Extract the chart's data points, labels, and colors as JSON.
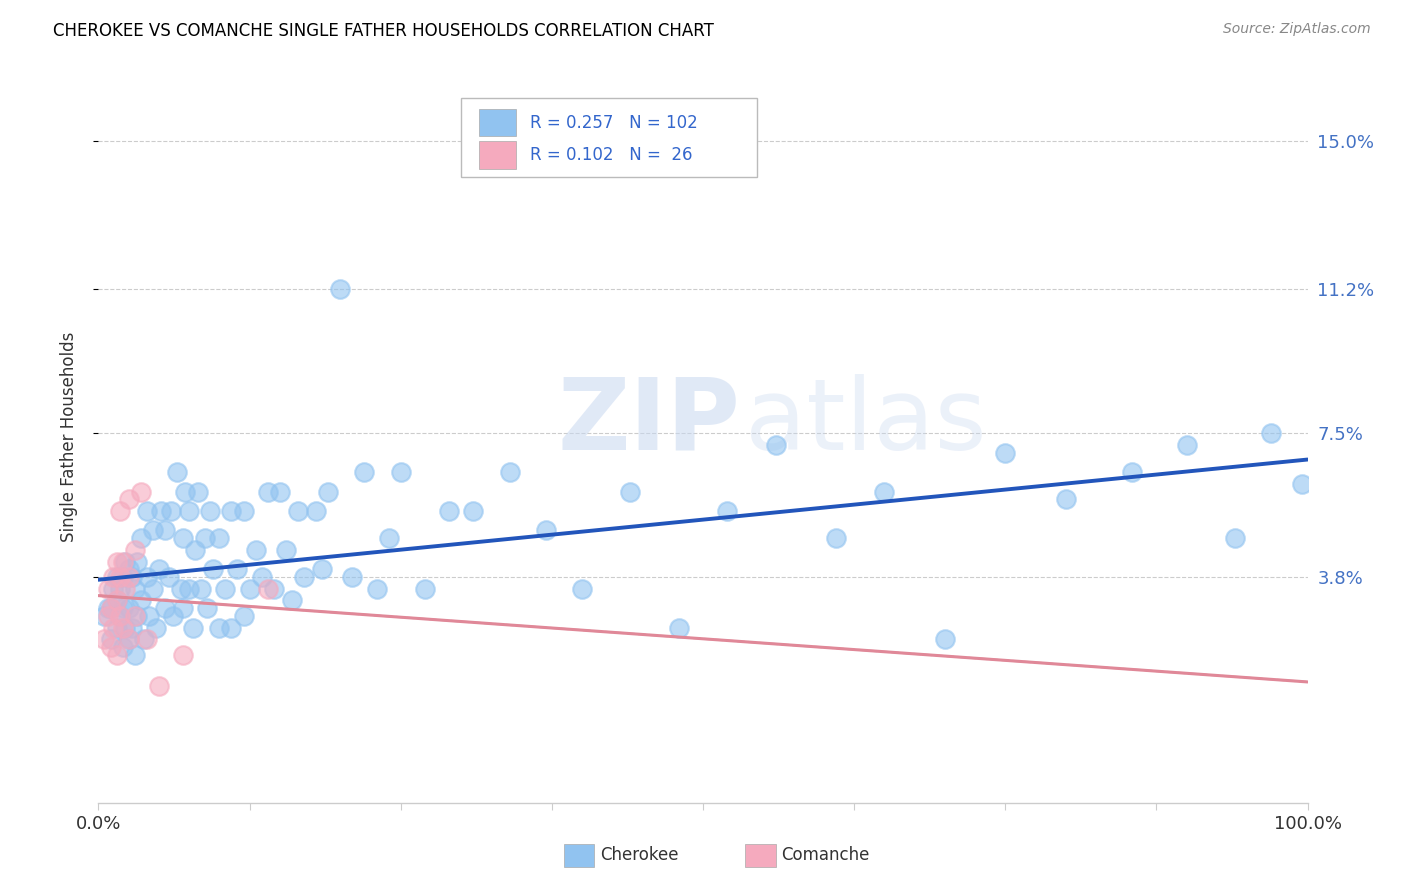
{
  "title": "CHEROKEE VS COMANCHE SINGLE FATHER HOUSEHOLDS CORRELATION CHART",
  "source": "Source: ZipAtlas.com",
  "ylabel": "Single Father Households",
  "ytick_labels": [
    "3.8%",
    "7.5%",
    "11.2%",
    "15.0%"
  ],
  "ytick_values": [
    0.038,
    0.075,
    0.112,
    0.15
  ],
  "xlim": [
    0.0,
    1.0
  ],
  "ylim": [
    -0.02,
    0.168
  ],
  "cherokee_color": "#91C3F0",
  "comanche_color": "#F5AABE",
  "cherokee_line_color": "#2255BB",
  "comanche_line_color": "#E08898",
  "cherokee_R": 0.257,
  "cherokee_N": 102,
  "comanche_R": 0.102,
  "comanche_N": 26,
  "legend_label_cherokee": "Cherokee",
  "legend_label_comanche": "Comanche",
  "watermark_zip": "ZIP",
  "watermark_atlas": "atlas",
  "cherokee_x": [
    0.005,
    0.008,
    0.01,
    0.01,
    0.012,
    0.015,
    0.015,
    0.015,
    0.018,
    0.018,
    0.02,
    0.02,
    0.02,
    0.022,
    0.022,
    0.025,
    0.025,
    0.025,
    0.028,
    0.028,
    0.03,
    0.03,
    0.032,
    0.032,
    0.035,
    0.035,
    0.038,
    0.04,
    0.04,
    0.042,
    0.045,
    0.045,
    0.048,
    0.05,
    0.052,
    0.055,
    0.055,
    0.058,
    0.06,
    0.062,
    0.065,
    0.068,
    0.07,
    0.07,
    0.072,
    0.075,
    0.075,
    0.078,
    0.08,
    0.082,
    0.085,
    0.088,
    0.09,
    0.092,
    0.095,
    0.1,
    0.1,
    0.105,
    0.11,
    0.11,
    0.115,
    0.12,
    0.12,
    0.125,
    0.13,
    0.135,
    0.14,
    0.145,
    0.15,
    0.155,
    0.16,
    0.165,
    0.17,
    0.18,
    0.185,
    0.19,
    0.2,
    0.21,
    0.22,
    0.23,
    0.24,
    0.25,
    0.27,
    0.29,
    0.31,
    0.34,
    0.37,
    0.4,
    0.44,
    0.48,
    0.52,
    0.56,
    0.61,
    0.65,
    0.7,
    0.75,
    0.8,
    0.855,
    0.9,
    0.94,
    0.97,
    0.995
  ],
  "cherokee_y": [
    0.028,
    0.03,
    0.022,
    0.03,
    0.035,
    0.025,
    0.032,
    0.038,
    0.028,
    0.035,
    0.02,
    0.03,
    0.038,
    0.025,
    0.042,
    0.022,
    0.03,
    0.04,
    0.025,
    0.038,
    0.018,
    0.035,
    0.028,
    0.042,
    0.032,
    0.048,
    0.022,
    0.038,
    0.055,
    0.028,
    0.035,
    0.05,
    0.025,
    0.04,
    0.055,
    0.03,
    0.05,
    0.038,
    0.055,
    0.028,
    0.065,
    0.035,
    0.03,
    0.048,
    0.06,
    0.035,
    0.055,
    0.025,
    0.045,
    0.06,
    0.035,
    0.048,
    0.03,
    0.055,
    0.04,
    0.025,
    0.048,
    0.035,
    0.025,
    0.055,
    0.04,
    0.028,
    0.055,
    0.035,
    0.045,
    0.038,
    0.06,
    0.035,
    0.06,
    0.045,
    0.032,
    0.055,
    0.038,
    0.055,
    0.04,
    0.06,
    0.112,
    0.038,
    0.065,
    0.035,
    0.048,
    0.065,
    0.035,
    0.055,
    0.055,
    0.065,
    0.05,
    0.035,
    0.06,
    0.025,
    0.055,
    0.072,
    0.048,
    0.06,
    0.022,
    0.07,
    0.058,
    0.065,
    0.072,
    0.048,
    0.075,
    0.062
  ],
  "comanche_x": [
    0.005,
    0.008,
    0.008,
    0.01,
    0.01,
    0.012,
    0.012,
    0.015,
    0.015,
    0.015,
    0.018,
    0.018,
    0.018,
    0.02,
    0.02,
    0.022,
    0.025,
    0.025,
    0.025,
    0.03,
    0.03,
    0.035,
    0.04,
    0.05,
    0.07,
    0.14
  ],
  "comanche_y": [
    0.022,
    0.028,
    0.035,
    0.02,
    0.03,
    0.025,
    0.038,
    0.018,
    0.032,
    0.042,
    0.028,
    0.038,
    0.055,
    0.025,
    0.042,
    0.035,
    0.022,
    0.038,
    0.058,
    0.028,
    0.045,
    0.06,
    0.022,
    0.01,
    0.018,
    0.035
  ],
  "grid_color": "#CCCCCC",
  "spine_color": "#CCCCCC",
  "tick_color": "#888888"
}
